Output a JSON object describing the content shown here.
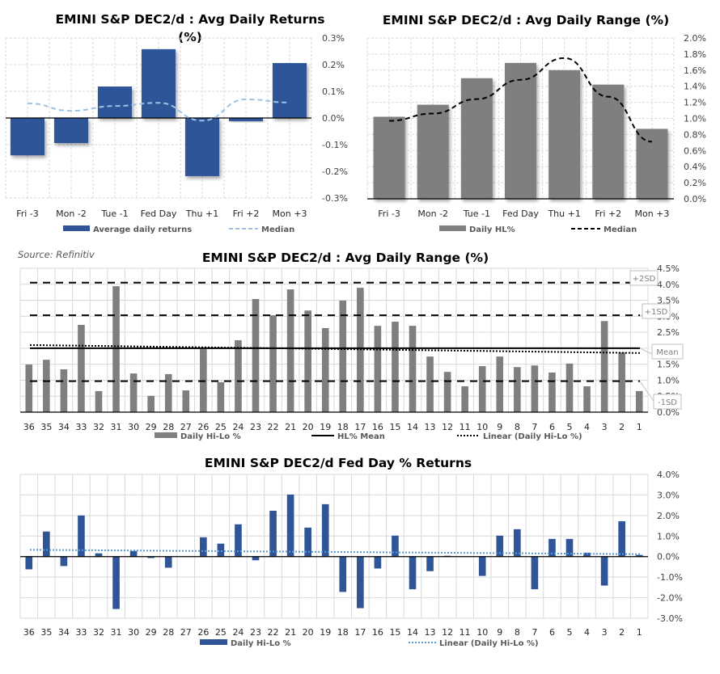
{
  "source_note": "Source: Refinitiv",
  "chart_data": [
    {
      "id": "avg-daily-returns",
      "type": "bar",
      "title": "EMINI S&P DEC2/d : Avg Daily Returns",
      "title_line2": "(%)",
      "categories": [
        "Fri -3",
        "Mon -2",
        "Tue -1",
        "Fed Day",
        "Thu +1",
        "Fri +2",
        "Mon +3"
      ],
      "series": [
        {
          "name": "Average daily returns",
          "kind": "bar",
          "color": "#2F5597",
          "values": [
            -0.14,
            -0.094,
            0.118,
            0.258,
            -0.218,
            -0.012,
            0.206
          ]
        },
        {
          "name": "Median",
          "kind": "line-dashed",
          "color": "#9DC3E6",
          "values": [
            0.055,
            0.027,
            0.045,
            0.057,
            -0.01,
            0.07,
            0.058
          ]
        }
      ],
      "ylim": [
        -0.3,
        0.3
      ],
      "yticks": [
        0.3,
        0.2,
        0.1,
        0.0,
        -0.1,
        -0.2,
        -0.3
      ],
      "ytick_labels": [
        "0.3%",
        "0.2%",
        "0.1%",
        "0.0%",
        "-0.1%",
        "-0.2%",
        "-0.3%"
      ],
      "y_axis_side": "right",
      "grid": true,
      "legend": "bottom"
    },
    {
      "id": "avg-daily-range",
      "type": "bar",
      "title": "EMINI S&P DEC2/d : Avg Daily Range (%)",
      "categories": [
        "Fri -3",
        "Mon -2",
        "Tue -1",
        "Fed Day",
        "Thu +1",
        "Fri +2",
        "Mon +3"
      ],
      "series": [
        {
          "name": "Daily HL%",
          "kind": "bar",
          "color": "#7F7F7F",
          "values": [
            1.02,
            1.17,
            1.5,
            1.69,
            1.6,
            1.42,
            0.87
          ]
        },
        {
          "name": "Median",
          "kind": "line-dashed",
          "color": "#000000",
          "values": [
            0.97,
            1.06,
            1.24,
            1.48,
            1.75,
            1.27,
            0.71
          ]
        }
      ],
      "ylim": [
        0,
        2.0
      ],
      "yticks": [
        2.0,
        1.8,
        1.6,
        1.4,
        1.2,
        1.0,
        0.8,
        0.6,
        0.4,
        0.2,
        0.0
      ],
      "ytick_labels": [
        "2.0%",
        "1.8%",
        "1.6%",
        "1.4%",
        "1.2%",
        "1.0%",
        "0.8%",
        "0.6%",
        "0.4%",
        "0.2%",
        "0.0%"
      ],
      "y_axis_side": "right",
      "grid": true,
      "legend": "bottom"
    },
    {
      "id": "daily-range-history",
      "type": "bar",
      "title": "EMINI S&P DEC2/d : Avg Daily Range (%)",
      "categories": [
        "36",
        "35",
        "34",
        "33",
        "32",
        "31",
        "30",
        "29",
        "28",
        "27",
        "26",
        "25",
        "24",
        "23",
        "22",
        "21",
        "20",
        "19",
        "18",
        "17",
        "16",
        "15",
        "14",
        "13",
        "12",
        "11",
        "10",
        "9",
        "8",
        "7",
        "6",
        "5",
        "4",
        "3",
        "2",
        "1"
      ],
      "series": [
        {
          "name": "Daily Hi-Lo %",
          "kind": "bar",
          "color": "#7F7F7F",
          "values": [
            1.49,
            1.64,
            1.34,
            2.73,
            0.66,
            3.94,
            1.21,
            0.51,
            1.19,
            0.68,
            1.97,
            0.94,
            2.25,
            3.54,
            3.03,
            3.84,
            3.18,
            2.63,
            3.49,
            3.89,
            2.7,
            2.83,
            2.7,
            1.74,
            1.26,
            0.81,
            1.44,
            1.74,
            1.41,
            1.46,
            1.24,
            1.52,
            0.81,
            2.85,
            1.87,
            0.66
          ]
        },
        {
          "name": "HL% Mean",
          "kind": "hline-solid",
          "color": "#000000",
          "value": 2.0
        },
        {
          "name": "Linear (Daily Hi-Lo %)",
          "kind": "trend-dotted",
          "color": "#000000",
          "start": 2.1,
          "end": 1.85
        }
      ],
      "reference_lines": [
        {
          "label": "+2SD",
          "value": 4.05
        },
        {
          "label": "+1SD",
          "value": 3.03
        },
        {
          "label": "Mean",
          "value": 2.0
        },
        {
          "label": "-1SD",
          "value": 0.97
        }
      ],
      "ylim": [
        0,
        4.5
      ],
      "yticks": [
        4.5,
        4.0,
        3.5,
        3.0,
        2.5,
        2.0,
        1.5,
        1.0,
        0.5,
        0.0
      ],
      "ytick_labels": [
        "4.5%",
        "4.0%",
        "3.5%",
        "3.0%",
        "2.5%",
        "2.0%",
        "1.5%",
        "1.0%",
        "0.5%",
        "0.0%"
      ],
      "y_axis_side": "right",
      "grid": true,
      "legend": "bottom"
    },
    {
      "id": "fed-day-returns",
      "type": "bar",
      "title": "EMINI S&P DEC2/d Fed Day % Returns",
      "categories": [
        "36",
        "35",
        "34",
        "33",
        "32",
        "31",
        "30",
        "29",
        "28",
        "27",
        "26",
        "25",
        "24",
        "23",
        "22",
        "21",
        "20",
        "19",
        "18",
        "17",
        "16",
        "15",
        "14",
        "13",
        "12",
        "11",
        "10",
        "9",
        "8",
        "7",
        "6",
        "5",
        "4",
        "3",
        "2",
        "1"
      ],
      "series": [
        {
          "name": "Daily Hi-Lo %",
          "kind": "bar",
          "color": "#2F5597",
          "values": [
            -0.62,
            1.22,
            -0.46,
            2.0,
            0.16,
            -2.55,
            0.27,
            -0.07,
            -0.54,
            0.0,
            0.94,
            0.63,
            1.57,
            -0.18,
            2.23,
            3.02,
            1.41,
            2.55,
            -1.72,
            -2.51,
            -0.58,
            1.02,
            -1.59,
            -0.71,
            0.04,
            0.0,
            -0.94,
            1.02,
            1.33,
            -1.59,
            0.86,
            0.86,
            0.19,
            -1.41,
            1.72,
            0.08
          ]
        },
        {
          "name": "Linear (Daily Hi-Lo %)",
          "kind": "trend-dotted",
          "color": "#5B9BD5",
          "start": 0.33,
          "end": 0.12
        }
      ],
      "ylim": [
        -3.0,
        4.0
      ],
      "yticks": [
        4.0,
        3.0,
        2.0,
        1.0,
        0.0,
        -1.0,
        -2.0,
        -3.0
      ],
      "ytick_labels": [
        "4.0%",
        "3.0%",
        "2.0%",
        "1.0%",
        "0.0%",
        "-1.0%",
        "-2.0%",
        "-3.0%"
      ],
      "y_axis_side": "right",
      "grid": true,
      "legend": "bottom"
    }
  ]
}
